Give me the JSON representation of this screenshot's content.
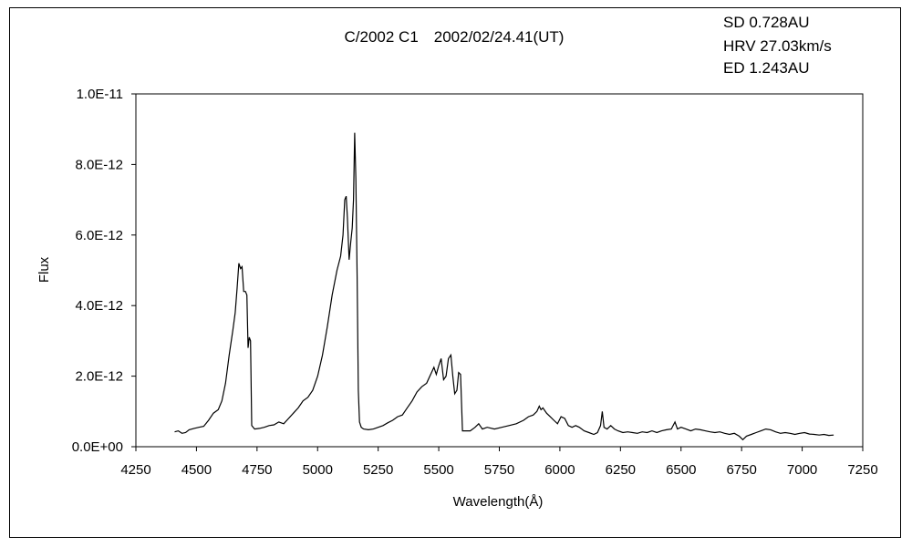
{
  "chart_data": {
    "type": "line",
    "title": "C/2002 C1　2002/02/24.41(UT)",
    "info_lines": [
      "SD 0.728AU",
      "HRV 27.03km/s",
      "ED 1.243AU"
    ],
    "xlabel": "Wavelength(Å)",
    "ylabel": "Flux",
    "xlim": [
      4250,
      7250
    ],
    "ylim": [
      0,
      1e-11
    ],
    "x_ticks": [
      4250,
      4500,
      4750,
      5000,
      5250,
      5500,
      5750,
      6000,
      6250,
      6500,
      6750,
      7000,
      7250
    ],
    "x_tick_labels": [
      "4250",
      "4500",
      "4750",
      "5000",
      "5250",
      "5500",
      "5750",
      "6000",
      "6250",
      "6500",
      "6750",
      "7000",
      "7250"
    ],
    "y_ticks": [
      0,
      2e-12,
      4e-12,
      6e-12,
      8e-12,
      1e-11
    ],
    "y_tick_labels": [
      "0.0E+00",
      "2.0E-12",
      "4.0E-12",
      "6.0E-12",
      "8.0E-12",
      "1.0E-11"
    ],
    "grid": false,
    "legend": "none",
    "line_color": "#000000",
    "series": [
      {
        "points": [
          [
            4410,
            4.2e-13
          ],
          [
            4425,
            4.5e-13
          ],
          [
            4440,
            3.8e-13
          ],
          [
            4455,
            4e-13
          ],
          [
            4470,
            4.8e-13
          ],
          [
            4490,
            5.2e-13
          ],
          [
            4510,
            5.5e-13
          ],
          [
            4530,
            5.8e-13
          ],
          [
            4550,
            7.5e-13
          ],
          [
            4570,
            9.5e-13
          ],
          [
            4590,
            1.05e-12
          ],
          [
            4605,
            1.3e-12
          ],
          [
            4620,
            1.8e-12
          ],
          [
            4635,
            2.6e-12
          ],
          [
            4650,
            3.3e-12
          ],
          [
            4660,
            3.8e-12
          ],
          [
            4668,
            4.5e-12
          ],
          [
            4675,
            5.2e-12
          ],
          [
            4682,
            5.05e-12
          ],
          [
            4688,
            5.1e-12
          ],
          [
            4695,
            4.4e-12
          ],
          [
            4702,
            4.4e-12
          ],
          [
            4708,
            4.3e-12
          ],
          [
            4713,
            2.8e-12
          ],
          [
            4718,
            3.1e-12
          ],
          [
            4723,
            3e-12
          ],
          [
            4728,
            6e-13
          ],
          [
            4740,
            5e-13
          ],
          [
            4760,
            5.2e-13
          ],
          [
            4780,
            5.5e-13
          ],
          [
            4800,
            6e-13
          ],
          [
            4820,
            6.2e-13
          ],
          [
            4840,
            7e-13
          ],
          [
            4860,
            6.5e-13
          ],
          [
            4880,
            8e-13
          ],
          [
            4900,
            9.5e-13
          ],
          [
            4920,
            1.1e-12
          ],
          [
            4940,
            1.3e-12
          ],
          [
            4960,
            1.4e-12
          ],
          [
            4980,
            1.6e-12
          ],
          [
            5000,
            2e-12
          ],
          [
            5020,
            2.6e-12
          ],
          [
            5040,
            3.4e-12
          ],
          [
            5060,
            4.3e-12
          ],
          [
            5080,
            5e-12
          ],
          [
            5095,
            5.4e-12
          ],
          [
            5105,
            6e-12
          ],
          [
            5112,
            7e-12
          ],
          [
            5118,
            7.1e-12
          ],
          [
            5123,
            6.5e-12
          ],
          [
            5130,
            5.3e-12
          ],
          [
            5137,
            5.8e-12
          ],
          [
            5143,
            6.2e-12
          ],
          [
            5148,
            7e-12
          ],
          [
            5153,
            8.9e-12
          ],
          [
            5158,
            7.6e-12
          ],
          [
            5163,
            4.8e-12
          ],
          [
            5168,
            1.6e-12
          ],
          [
            5173,
            7e-13
          ],
          [
            5180,
            5.5e-13
          ],
          [
            5190,
            5e-13
          ],
          [
            5210,
            4.8e-13
          ],
          [
            5230,
            5e-13
          ],
          [
            5250,
            5.5e-13
          ],
          [
            5270,
            6e-13
          ],
          [
            5290,
            6.8e-13
          ],
          [
            5310,
            7.5e-13
          ],
          [
            5330,
            8.5e-13
          ],
          [
            5350,
            9e-13
          ],
          [
            5370,
            1.1e-12
          ],
          [
            5390,
            1.3e-12
          ],
          [
            5410,
            1.55e-12
          ],
          [
            5430,
            1.7e-12
          ],
          [
            5450,
            1.8e-12
          ],
          [
            5470,
            2.1e-12
          ],
          [
            5480,
            2.25e-12
          ],
          [
            5490,
            2.05e-12
          ],
          [
            5500,
            2.3e-12
          ],
          [
            5510,
            2.5e-12
          ],
          [
            5520,
            1.9e-12
          ],
          [
            5530,
            2e-12
          ],
          [
            5540,
            2.5e-12
          ],
          [
            5550,
            2.6e-12
          ],
          [
            5558,
            2e-12
          ],
          [
            5566,
            1.5e-12
          ],
          [
            5575,
            1.6e-12
          ],
          [
            5582,
            2.1e-12
          ],
          [
            5590,
            2.05e-12
          ],
          [
            5598,
            4.5e-13
          ],
          [
            5610,
            4.5e-13
          ],
          [
            5630,
            4.5e-13
          ],
          [
            5650,
            5.5e-13
          ],
          [
            5665,
            6.5e-13
          ],
          [
            5680,
            5e-13
          ],
          [
            5700,
            5.5e-13
          ],
          [
            5730,
            5e-13
          ],
          [
            5760,
            5.5e-13
          ],
          [
            5790,
            6e-13
          ],
          [
            5820,
            6.5e-13
          ],
          [
            5850,
            7.5e-13
          ],
          [
            5870,
            8.5e-13
          ],
          [
            5890,
            9e-13
          ],
          [
            5905,
            1e-12
          ],
          [
            5915,
            1.15e-12
          ],
          [
            5922,
            1.05e-12
          ],
          [
            5930,
            1.1e-12
          ],
          [
            5945,
            9.5e-13
          ],
          [
            5960,
            8.5e-13
          ],
          [
            5975,
            7.5e-13
          ],
          [
            5990,
            6.5e-13
          ],
          [
            6005,
            8.5e-13
          ],
          [
            6020,
            8e-13
          ],
          [
            6035,
            6e-13
          ],
          [
            6050,
            5.5e-13
          ],
          [
            6065,
            6e-13
          ],
          [
            6080,
            5.5e-13
          ],
          [
            6100,
            4.5e-13
          ],
          [
            6120,
            4e-13
          ],
          [
            6140,
            3.5e-13
          ],
          [
            6155,
            4e-13
          ],
          [
            6168,
            6e-13
          ],
          [
            6175,
            1e-12
          ],
          [
            6182,
            5.5e-13
          ],
          [
            6195,
            5e-13
          ],
          [
            6210,
            6e-13
          ],
          [
            6225,
            5e-13
          ],
          [
            6240,
            4.5e-13
          ],
          [
            6260,
            4e-13
          ],
          [
            6280,
            4.2e-13
          ],
          [
            6300,
            4e-13
          ],
          [
            6320,
            3.8e-13
          ],
          [
            6340,
            4.2e-13
          ],
          [
            6360,
            4e-13
          ],
          [
            6380,
            4.5e-13
          ],
          [
            6400,
            4e-13
          ],
          [
            6420,
            4.5e-13
          ],
          [
            6440,
            4.8e-13
          ],
          [
            6460,
            5e-13
          ],
          [
            6475,
            7e-13
          ],
          [
            6485,
            5e-13
          ],
          [
            6500,
            5.5e-13
          ],
          [
            6520,
            5e-13
          ],
          [
            6540,
            4.5e-13
          ],
          [
            6560,
            5e-13
          ],
          [
            6580,
            4.8e-13
          ],
          [
            6600,
            4.5e-13
          ],
          [
            6620,
            4.2e-13
          ],
          [
            6640,
            4e-13
          ],
          [
            6660,
            4.2e-13
          ],
          [
            6680,
            3.8e-13
          ],
          [
            6700,
            3.5e-13
          ],
          [
            6720,
            3.8e-13
          ],
          [
            6740,
            3e-13
          ],
          [
            6755,
            2e-13
          ],
          [
            6770,
            3e-13
          ],
          [
            6790,
            3.5e-13
          ],
          [
            6810,
            4e-13
          ],
          [
            6830,
            4.5e-13
          ],
          [
            6850,
            5e-13
          ],
          [
            6870,
            4.8e-13
          ],
          [
            6890,
            4.2e-13
          ],
          [
            6910,
            3.8e-13
          ],
          [
            6930,
            4e-13
          ],
          [
            6950,
            3.8e-13
          ],
          [
            6970,
            3.5e-13
          ],
          [
            6990,
            3.8e-13
          ],
          [
            7010,
            4e-13
          ],
          [
            7030,
            3.6e-13
          ],
          [
            7050,
            3.5e-13
          ],
          [
            7070,
            3.3e-13
          ],
          [
            7090,
            3.5e-13
          ],
          [
            7110,
            3.2e-13
          ],
          [
            7130,
            3.3e-13
          ]
        ]
      }
    ]
  }
}
